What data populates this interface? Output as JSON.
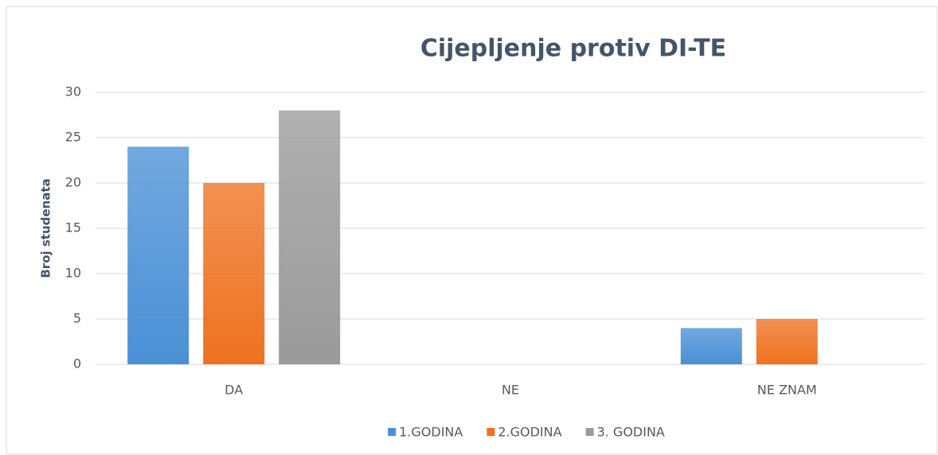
{
  "chart_data": {
    "type": "bar",
    "title": "Cijepljenje protiv DI-TE",
    "y_label": "Broj studenata",
    "categories": [
      "DA",
      "NE",
      "NE ZNAM"
    ],
    "series": [
      {
        "name": "1.GODINA",
        "color": "#4a90d6",
        "values": [
          24,
          0,
          4
        ]
      },
      {
        "name": "2.GODINA",
        "color": "#ee7220",
        "values": [
          20,
          0,
          5
        ]
      },
      {
        "name": "3. GODINA",
        "color": "#9a9a9a",
        "values": [
          28,
          0,
          0
        ]
      }
    ],
    "ylim": [
      0,
      30
    ],
    "yticks": [
      0,
      5,
      10,
      15,
      20,
      25,
      30
    ],
    "grid": true,
    "legend": "bottom"
  }
}
